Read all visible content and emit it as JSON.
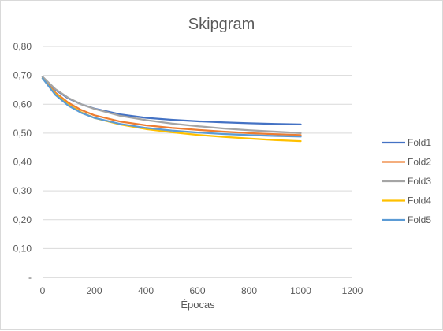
{
  "chart_data": {
    "type": "line",
    "title": "Skipgram",
    "xlabel": "Épocas",
    "ylabel": "",
    "xlim": [
      0,
      1200
    ],
    "ylim": [
      0,
      0.8
    ],
    "x_ticks": [
      0,
      200,
      400,
      600,
      800,
      1000,
      1200
    ],
    "x_tick_labels": [
      "0",
      "200",
      "400",
      "600",
      "800",
      "1000",
      "1200"
    ],
    "y_ticks": [
      0,
      0.1,
      0.2,
      0.3,
      0.4,
      0.5,
      0.6,
      0.7,
      0.8
    ],
    "y_tick_labels": [
      "-",
      "0,10",
      "0,20",
      "0,30",
      "0,40",
      "0,50",
      "0,60",
      "0,70",
      "0,80"
    ],
    "grid": "horizontal",
    "legend_position": "right",
    "x": [
      0,
      50,
      100,
      150,
      200,
      300,
      400,
      500,
      600,
      700,
      800,
      900,
      1000
    ],
    "series": [
      {
        "name": "Fold1",
        "color": "#4472C4",
        "values": [
          0.695,
          0.65,
          0.62,
          0.6,
          0.585,
          0.565,
          0.553,
          0.546,
          0.541,
          0.537,
          0.534,
          0.532,
          0.53
        ]
      },
      {
        "name": "Fold2",
        "color": "#ED7D31",
        "values": [
          0.69,
          0.64,
          0.605,
          0.58,
          0.562,
          0.54,
          0.527,
          0.518,
          0.511,
          0.505,
          0.5,
          0.496,
          0.493
        ]
      },
      {
        "name": "Fold3",
        "color": "#A5A5A5",
        "values": [
          0.695,
          0.652,
          0.622,
          0.6,
          0.584,
          0.56,
          0.545,
          0.533,
          0.524,
          0.516,
          0.51,
          0.505,
          0.5
        ]
      },
      {
        "name": "Fold4",
        "color": "#FFC000",
        "values": [
          0.69,
          0.635,
          0.598,
          0.572,
          0.553,
          0.53,
          0.514,
          0.503,
          0.494,
          0.487,
          0.481,
          0.476,
          0.472
        ]
      },
      {
        "name": "Fold5",
        "color": "#5B9BD5",
        "values": [
          0.69,
          0.632,
          0.595,
          0.57,
          0.553,
          0.532,
          0.518,
          0.509,
          0.502,
          0.497,
          0.493,
          0.49,
          0.488
        ]
      }
    ]
  }
}
